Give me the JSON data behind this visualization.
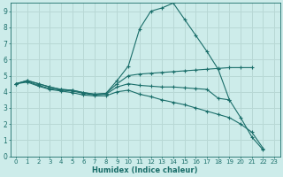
{
  "xlabel": "Humidex (Indice chaleur)",
  "background_color": "#cdecea",
  "grid_color": "#b8d8d5",
  "line_color": "#1a6e6a",
  "xlim": [
    -0.5,
    23.5
  ],
  "ylim": [
    0,
    9.5
  ],
  "xticks": [
    0,
    1,
    2,
    3,
    4,
    5,
    6,
    7,
    8,
    9,
    10,
    11,
    12,
    13,
    14,
    15,
    16,
    17,
    18,
    19,
    20,
    21,
    22,
    23
  ],
  "yticks": [
    0,
    1,
    2,
    3,
    4,
    5,
    6,
    7,
    8,
    9
  ],
  "series": [
    {
      "x": [
        0,
        1,
        2,
        3,
        4,
        5,
        6,
        7,
        8,
        9,
        10,
        11,
        12,
        13,
        14,
        15,
        16,
        17,
        18,
        19,
        20,
        21,
        22
      ],
      "y": [
        4.5,
        4.7,
        4.5,
        4.3,
        4.15,
        4.1,
        3.95,
        3.85,
        3.9,
        4.7,
        5.6,
        7.9,
        9.0,
        9.2,
        9.5,
        8.5,
        7.5,
        6.5,
        5.4,
        3.5,
        2.4,
        1.2,
        0.4
      ]
    },
    {
      "x": [
        0,
        1,
        2,
        3,
        4,
        5,
        6,
        7,
        8,
        9,
        10,
        11,
        12,
        13,
        14,
        15,
        16,
        17,
        18,
        19,
        20,
        21
      ],
      "y": [
        4.5,
        4.7,
        4.5,
        4.3,
        4.15,
        4.1,
        3.95,
        3.85,
        3.9,
        4.5,
        5.0,
        5.1,
        5.15,
        5.2,
        5.25,
        5.3,
        5.35,
        5.4,
        5.45,
        5.5,
        5.5,
        5.5
      ]
    },
    {
      "x": [
        0,
        1,
        2,
        3,
        4,
        5,
        6,
        7,
        8,
        9,
        10,
        11,
        12,
        13,
        14,
        15,
        16,
        17,
        18,
        19
      ],
      "y": [
        4.5,
        4.65,
        4.4,
        4.2,
        4.1,
        4.05,
        3.9,
        3.8,
        3.85,
        4.3,
        4.5,
        4.4,
        4.35,
        4.3,
        4.3,
        4.25,
        4.2,
        4.15,
        3.6,
        3.5
      ]
    },
    {
      "x": [
        0,
        1,
        2,
        3,
        4,
        5,
        6,
        7,
        8,
        9,
        10,
        11,
        12,
        13,
        14,
        15,
        16,
        17,
        18,
        19,
        20,
        21,
        22
      ],
      "y": [
        4.5,
        4.6,
        4.35,
        4.15,
        4.05,
        3.95,
        3.8,
        3.75,
        3.75,
        4.0,
        4.1,
        3.85,
        3.7,
        3.5,
        3.35,
        3.2,
        3.0,
        2.8,
        2.6,
        2.4,
        2.0,
        1.5,
        0.5
      ]
    }
  ]
}
